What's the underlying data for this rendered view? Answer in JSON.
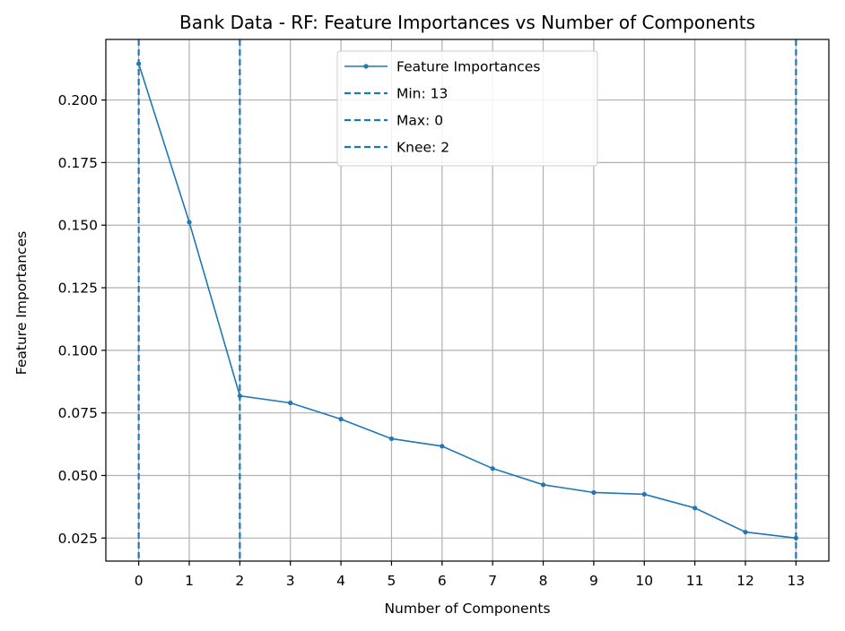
{
  "chart_data": {
    "type": "line",
    "title": "Bank Data - RF: Feature Importances vs Number of Components",
    "xlabel": "Number of Components",
    "ylabel": "Feature Importances",
    "x": [
      0,
      1,
      2,
      3,
      4,
      5,
      6,
      7,
      8,
      9,
      10,
      11,
      12,
      13
    ],
    "xlim": [
      -0.65,
      13.65
    ],
    "ylim": [
      0.0158,
      0.2242
    ],
    "yticks": [
      "0.025",
      "0.050",
      "0.075",
      "0.100",
      "0.125",
      "0.150",
      "0.175",
      "0.200"
    ],
    "grid": true,
    "legend_position": "top-center",
    "series": [
      {
        "name": "Feature Importances",
        "color": "#1f77b4",
        "style": "solid-with-markers",
        "values": [
          0.2145,
          0.1512,
          0.0818,
          0.079,
          0.0725,
          0.0647,
          0.0617,
          0.0528,
          0.0463,
          0.0432,
          0.0425,
          0.037,
          0.0274,
          0.025
        ]
      }
    ],
    "vlines": [
      {
        "name": "Min: 13",
        "x": 13,
        "color": "#1f77b4",
        "style": "dashed"
      },
      {
        "name": "Max: 0",
        "x": 0,
        "color": "#1f77b4",
        "style": "dashed"
      },
      {
        "name": "Knee: 2",
        "x": 2,
        "color": "#1f77b4",
        "style": "dashed"
      }
    ]
  }
}
